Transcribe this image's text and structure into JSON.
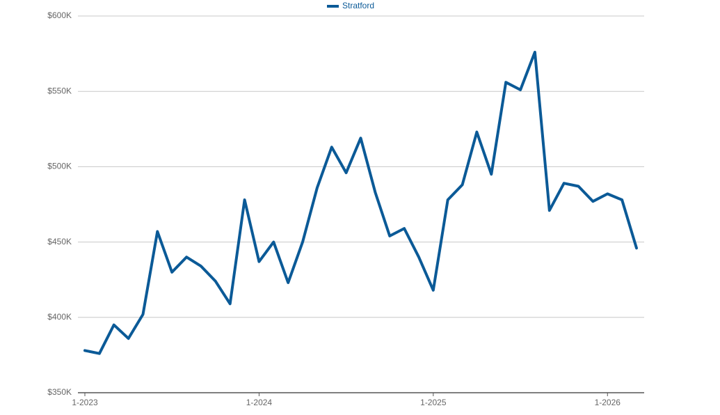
{
  "chart_data": {
    "type": "line",
    "categories": [
      "1-2023",
      null,
      null,
      null,
      null,
      null,
      null,
      null,
      null,
      null,
      null,
      null,
      "1-2024",
      null,
      null,
      null,
      null,
      null,
      null,
      null,
      null,
      null,
      null,
      null,
      "1-2025",
      null,
      null,
      null,
      null,
      null,
      null,
      null,
      null,
      null,
      null,
      null,
      "1-2026",
      null,
      null
    ],
    "series": [
      {
        "name": "Stratford",
        "color": "#0b5a97",
        "values": [
          378,
          376,
          395,
          386,
          402,
          457,
          430,
          440,
          434,
          424,
          409,
          478,
          437,
          450,
          423,
          450,
          486,
          513,
          496,
          519,
          483,
          454,
          459,
          440,
          418,
          478,
          488,
          523,
          495,
          556,
          551,
          576,
          471,
          489,
          487,
          477,
          482,
          478,
          446
        ]
      }
    ],
    "ylim": [
      350,
      600
    ],
    "yticks": [
      {
        "value": 350,
        "label": "$350K"
      },
      {
        "value": 400,
        "label": "$400K"
      },
      {
        "value": 450,
        "label": "$450K"
      },
      {
        "value": 500,
        "label": "$500K"
      },
      {
        "value": 550,
        "label": "$550K"
      },
      {
        "value": 600,
        "label": "$600K"
      }
    ],
    "grid": true,
    "legend": "top"
  }
}
